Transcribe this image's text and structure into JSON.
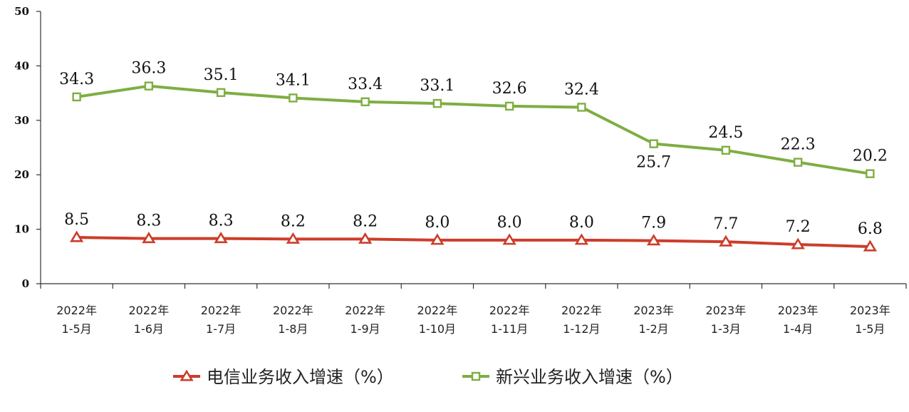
{
  "chart_data": {
    "type": "line",
    "title": "",
    "xlabel": "",
    "ylabel": "",
    "ylim": [
      0,
      50
    ],
    "yticks": [
      "0",
      "10",
      "20",
      "30",
      "40",
      "50"
    ],
    "grid": false,
    "legend_position": "bottom",
    "categories": [
      [
        "2022年",
        "1-5月"
      ],
      [
        "2022年",
        "1-6月"
      ],
      [
        "2022年",
        "1-7月"
      ],
      [
        "2022年",
        "1-8月"
      ],
      [
        "2022年",
        "1-9月"
      ],
      [
        "2022年",
        "1-10月"
      ],
      [
        "2022年",
        "1-11月"
      ],
      [
        "2022年",
        "1-12月"
      ],
      [
        "2023年",
        "1-2月"
      ],
      [
        "2023年",
        "1-3月"
      ],
      [
        "2023年",
        "1-4月"
      ],
      [
        "2023年",
        "1-5月"
      ]
    ],
    "series": [
      {
        "name": "电信业务收入增速（%）",
        "color": "#cc3d2a",
        "marker": "triangle",
        "values": [
          8.5,
          8.3,
          8.3,
          8.2,
          8.2,
          8.0,
          8.0,
          8.0,
          7.9,
          7.7,
          7.2,
          6.8
        ],
        "labels": [
          "8.5",
          "8.3",
          "8.3",
          "8.2",
          "8.2",
          "8.0",
          "8.0",
          "8.0",
          "7.9",
          "7.7",
          "7.2",
          "6.8"
        ],
        "label_side": [
          "above",
          "above",
          "above",
          "above",
          "above",
          "above",
          "above",
          "above",
          "above",
          "above",
          "above",
          "above"
        ]
      },
      {
        "name": "新兴业务收入增速（%）",
        "color": "#7eae42",
        "marker": "square",
        "values": [
          34.3,
          36.3,
          35.1,
          34.1,
          33.4,
          33.1,
          32.6,
          32.4,
          25.7,
          24.5,
          22.3,
          20.2
        ],
        "labels": [
          "34.3",
          "36.3",
          "35.1",
          "34.1",
          "33.4",
          "33.1",
          "32.6",
          "32.4",
          "25.7",
          "24.5",
          "22.3",
          "20.2"
        ],
        "label_side": [
          "above",
          "above",
          "above",
          "above",
          "above",
          "above",
          "above",
          "above",
          "below",
          "above",
          "above",
          "above"
        ]
      }
    ]
  }
}
